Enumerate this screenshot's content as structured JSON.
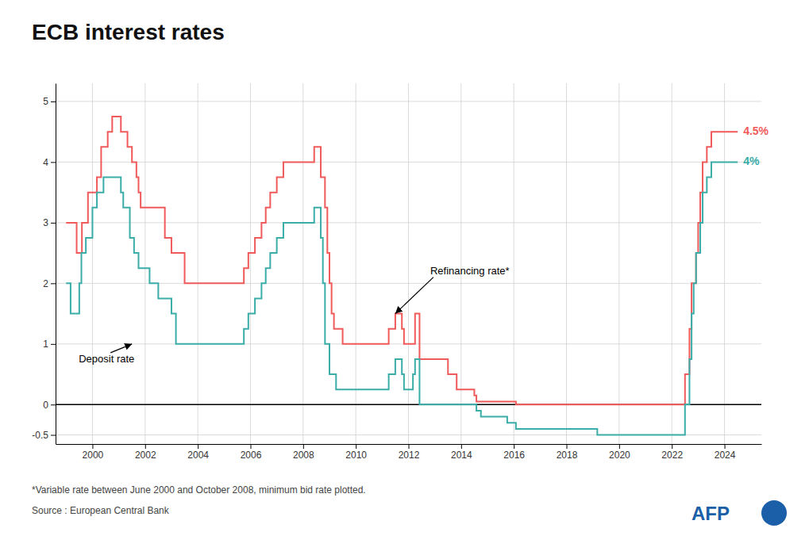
{
  "chart_data": {
    "type": "step",
    "title": "ECB interest rates",
    "background_color": "#ffffff",
    "grid": true,
    "grid_color": "#cccccc",
    "xlim": [
      1998.6,
      2025.4
    ],
    "xticks": [
      2000,
      2002,
      2004,
      2006,
      2008,
      2010,
      2012,
      2014,
      2016,
      2018,
      2020,
      2022,
      2024
    ],
    "ylim": [
      -0.65,
      5.3
    ],
    "yticks": [
      -0.5,
      0,
      1,
      2,
      3,
      4,
      5
    ],
    "series": [
      {
        "color": "#f05a5a",
        "x": [
          1999.0,
          1999.25,
          1999.4,
          1999.6,
          1999.75,
          1999.83,
          2000.0,
          2000.17,
          2000.33,
          2000.5,
          2000.58,
          2000.75,
          2000.83,
          2001.0,
          2001.08,
          2001.33,
          2001.5,
          2001.67,
          2001.75,
          2001.83,
          2002.0,
          2002.67,
          2002.75,
          2003.0,
          2003.17,
          2003.5,
          2004.0,
          2005.0,
          2005.67,
          2005.75,
          2005.92,
          2006.17,
          2006.42,
          2006.58,
          2006.75,
          2007.0,
          2007.25,
          2007.5,
          2008.0,
          2008.42,
          2008.5,
          2008.67,
          2008.83,
          2008.92,
          2009.0,
          2009.08,
          2009.17,
          2009.5,
          2010.0,
          2011.0,
          2011.25,
          2011.5,
          2011.75,
          2011.83,
          2012.0,
          2012.17,
          2012.25,
          2012.42,
          2013.0,
          2013.5,
          2013.83,
          2014.5,
          2014.58,
          2016.08,
          2022.42,
          2022.5,
          2022.67,
          2022.75,
          2022.92,
          2023.0,
          2023.08,
          2023.17,
          2023.33,
          2023.5,
          2024.5
        ],
        "values": [
          3.0,
          3.0,
          2.5,
          3.0,
          3.0,
          3.5,
          3.5,
          3.75,
          4.25,
          4.25,
          4.5,
          4.75,
          4.75,
          4.75,
          4.5,
          4.25,
          4.0,
          3.75,
          3.5,
          3.25,
          3.25,
          3.25,
          2.75,
          2.5,
          2.5,
          2.0,
          2.0,
          2.0,
          2.0,
          2.25,
          2.5,
          2.75,
          3.0,
          3.25,
          3.5,
          3.75,
          4.0,
          4.0,
          4.0,
          4.25,
          4.25,
          3.75,
          3.25,
          2.5,
          2.0,
          1.5,
          1.25,
          1.0,
          1.0,
          1.0,
          1.25,
          1.5,
          1.25,
          1.0,
          1.0,
          1.0,
          1.5,
          0.75,
          0.75,
          0.5,
          0.25,
          0.15,
          0.05,
          0.0,
          0.0,
          0.5,
          1.25,
          2.0,
          2.5,
          3.0,
          3.5,
          4.0,
          4.25,
          4.5,
          4.5
        ]
      },
      {
        "color": "#3aada8",
        "x": [
          1999.0,
          1999.17,
          1999.5,
          1999.58,
          1999.75,
          2000.0,
          2000.17,
          2000.42,
          2000.75,
          2001.0,
          2001.08,
          2001.17,
          2001.42,
          2001.58,
          2001.75,
          2002.0,
          2002.17,
          2002.5,
          2003.0,
          2003.17,
          2004.0,
          2005.0,
          2005.67,
          2005.75,
          2005.92,
          2006.17,
          2006.42,
          2006.58,
          2006.75,
          2007.0,
          2007.25,
          2008.0,
          2008.42,
          2008.67,
          2008.75,
          2008.83,
          2009.0,
          2009.25,
          2010.0,
          2011.0,
          2011.25,
          2011.5,
          2011.75,
          2011.83,
          2012.0,
          2012.17,
          2012.25,
          2012.42,
          2013.0,
          2014.58,
          2014.75,
          2015.75,
          2016.08,
          2019.17,
          2022.42,
          2022.5,
          2022.67,
          2022.75,
          2022.83,
          2022.92,
          2023.0,
          2023.08,
          2023.17,
          2023.33,
          2023.5,
          2024.5
        ],
        "values": [
          2.0,
          1.5,
          2.0,
          2.5,
          2.75,
          3.25,
          3.5,
          3.75,
          3.75,
          3.75,
          3.5,
          3.25,
          2.75,
          2.5,
          2.25,
          2.25,
          2.0,
          1.75,
          1.5,
          1.0,
          1.0,
          1.0,
          1.0,
          1.25,
          1.5,
          1.75,
          2.0,
          2.25,
          2.5,
          2.75,
          3.0,
          3.0,
          3.25,
          2.75,
          2.0,
          1.0,
          0.5,
          0.25,
          0.25,
          0.25,
          0.5,
          0.75,
          0.5,
          0.25,
          0.25,
          0.5,
          0.75,
          0.0,
          0.0,
          -0.1,
          -0.2,
          -0.3,
          -0.4,
          -0.5,
          -0.5,
          0.0,
          0.75,
          1.5,
          2.0,
          2.5,
          2.5,
          3.0,
          3.5,
          3.75,
          4.0,
          4.0
        ]
      }
    ],
    "zero_line": {
      "y": 0,
      "color": "#000000"
    },
    "end_labels": [
      {
        "text": "4.5%",
        "x": 2024.5,
        "y": 4.5,
        "color": "#f05a5a"
      },
      {
        "text": "4%",
        "x": 2024.5,
        "y": 4.0,
        "color": "#3aada8"
      }
    ],
    "annotations": [
      {
        "text": "Refinancing rate*",
        "x": 2011.5,
        "y": 1.5,
        "color": "#000000"
      },
      {
        "text": "Deposit rate",
        "x": 2001.5,
        "y": 1.0,
        "color": "#000000"
      }
    ],
    "footnote": "*Variable rate between June 2000 and October 2008, minimum bid rate plotted.",
    "source": "Source : European Central Bank",
    "logo": "AFP",
    "logo_color": "#1a5fa8"
  }
}
